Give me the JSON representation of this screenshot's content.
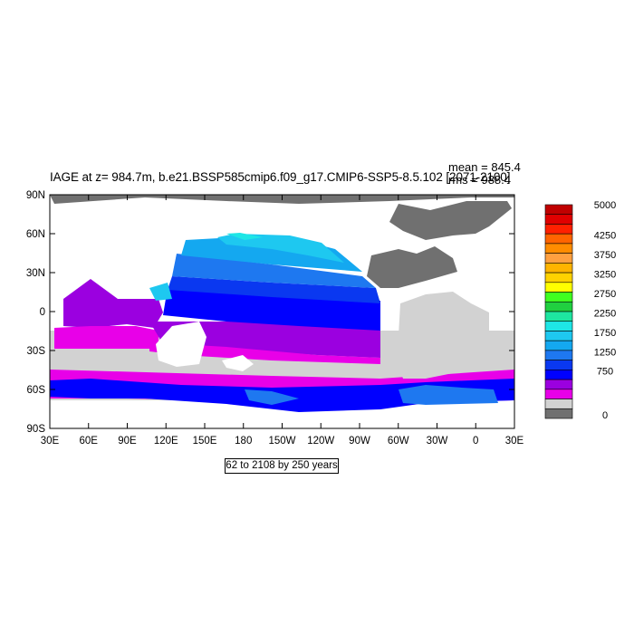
{
  "plot": {
    "title": "IAGE at z= 984.7m, b.e21.BSSP585cmip6.f09_g17.CMIP6-SSP5-8.5.102 [2071-2100]",
    "stat_mean": "mean = 845.4",
    "stat_rms": "rms = 988.4",
    "subtitle": "62 to 2108 by 250 years"
  },
  "map_data": {
    "projection": "cylindrical equidistant, centered 210E",
    "lon_ticks": [
      "30E",
      "60E",
      "90E",
      "120E",
      "150E",
      "180",
      "150W",
      "120W",
      "90W",
      "60W",
      "30W",
      "0",
      "30E"
    ],
    "lat_ticks": [
      "90N",
      "60N",
      "30N",
      "0",
      "30S",
      "60S",
      "90S"
    ],
    "contour_levels": [
      0,
      62,
      312,
      562,
      812,
      1062,
      1312,
      1562,
      1812,
      2062,
      2312,
      2562,
      2812,
      3062,
      3312,
      3562,
      3812,
      4062,
      4312,
      4562,
      4812,
      5000
    ],
    "colorbar_labels": [
      "5000",
      "4250",
      "3750",
      "3250",
      "2750",
      "2250",
      "1750",
      "1250",
      "750",
      "0"
    ],
    "colors": {
      "land": "#707070",
      "lowest": "#d2d2d2",
      "magenta": "#e800e8",
      "purple": "#9b00e0",
      "blue": "#0000ff",
      "blue2": "#0a38f0",
      "midblue": "#1e78f0",
      "lightblue": "#14a8f0",
      "cyan": "#1ec8f0",
      "cyan2": "#1ee6e6"
    },
    "colorbar_colors": [
      "#c00000",
      "#e00000",
      "#ff2000",
      "#ff6400",
      "#ff8c00",
      "#ffa040",
      "#ffb400",
      "#ffd200",
      "#ffff00",
      "#40ff20",
      "#20d040",
      "#1ee6a0",
      "#1ee6e6",
      "#1ec8f0",
      "#14a8f0",
      "#1e78f0",
      "#0a38f0",
      "#0000ff",
      "#9b00e0",
      "#e800e8",
      "#d2d2d2",
      "#707070"
    ]
  }
}
